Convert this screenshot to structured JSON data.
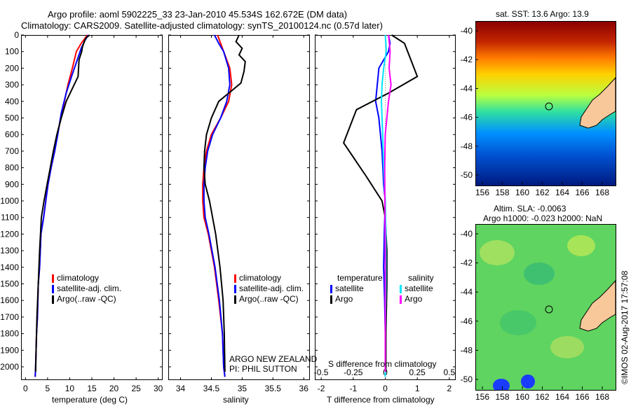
{
  "title": {
    "line1": "Argo profile: aoml 5902225_33 23-Jan-2010 45.534S 162.672E (DM data)",
    "line2": "Climatology: CARS2009. Satellite-adjusted climatology: synTS_20100124.nc (0.57d later)"
  },
  "colors": {
    "climatology": "#ff0000",
    "satellite": "#0000ff",
    "argo": "#000000",
    "sal_satellite": "#00e5ff",
    "sal_argo": "#ff00ff"
  },
  "legend_profiles": {
    "climatology": "climatology",
    "satellite": "satellite-adj. clim.",
    "argo": "Argo(..raw -QC)"
  },
  "legend_diff": {
    "temperature_head": "temperature",
    "salinity_head": "salinity",
    "satellite": "satellite",
    "argo": "Argo"
  },
  "annotations": {
    "institute": "ARGO NEW ZEALAND",
    "pi": "PI: PHIL SUTTON",
    "s_diff_label": "S difference from climatology",
    "stamp": "©IMOS 02-Aug-2017 17:57:08"
  },
  "maps": {
    "sst_title": "sat. SST: 13.6 Argo: 13.9",
    "sla_title1": "Altim. SLA: -0.0063",
    "sla_title2": "Argo h1000: -0.023 h2000: NaN",
    "lat_ticks": [
      "-40",
      "-42",
      "-44",
      "-46",
      "-48",
      "-50"
    ],
    "lon_ticks": [
      "156",
      "158",
      "160",
      "162",
      "164",
      "166",
      "168"
    ]
  },
  "chart_data": [
    {
      "type": "line",
      "xlabel": "temperature (deg C)",
      "ylabel": "",
      "xlim": [
        -1,
        31
      ],
      "ylim": [
        2080,
        0
      ],
      "xticks": [
        0,
        5,
        10,
        15,
        20,
        25,
        30
      ],
      "yticks": [
        0,
        100,
        200,
        300,
        400,
        500,
        600,
        700,
        800,
        900,
        1000,
        1100,
        1200,
        1300,
        1400,
        1500,
        1600,
        1700,
        1800,
        1900,
        2000
      ],
      "series": [
        {
          "name": "climatology",
          "x": [
            14,
            12.6,
            11.5,
            10.6,
            9.6,
            8.8,
            8,
            7.2,
            6.6,
            5.8,
            5.1,
            4.6,
            4.1,
            3.5,
            3.2,
            2.9,
            2.7,
            2.5,
            2.3,
            2.2
          ],
          "y": [
            0,
            50,
            100,
            200,
            300,
            400,
            500,
            600,
            700,
            800,
            900,
            1000,
            1100,
            1200,
            1400,
            1500,
            1700,
            1800,
            2000,
            2060
          ]
        },
        {
          "name": "satellite-adj. clim.",
          "x": [
            14.2,
            13.5,
            12.6,
            11.7,
            10.4,
            9.2,
            8.1,
            7.3,
            6.6,
            5.8,
            5.1,
            4.6,
            4.1,
            3.5,
            3.2,
            2.9,
            2.7,
            2.5,
            2.3,
            2.2
          ],
          "y": [
            0,
            30,
            80,
            150,
            250,
            350,
            470,
            600,
            700,
            800,
            900,
            1000,
            1100,
            1200,
            1400,
            1500,
            1700,
            1800,
            2000,
            2060
          ]
        },
        {
          "name": "Argo(..raw -QC)",
          "x": [
            14.5,
            13.6,
            13.3,
            12.9,
            12.7,
            12.1,
            11.9,
            9.2,
            8.1,
            7.1,
            6.3,
            5.6,
            4.9,
            4.2,
            3.6,
            3.2,
            2.9,
            2.6,
            2.4,
            2.3
          ],
          "y": [
            0,
            20,
            40,
            70,
            100,
            150,
            250,
            400,
            500,
            600,
            700,
            800,
            900,
            1000,
            1100,
            1300,
            1500,
            1700,
            1900,
            2030
          ]
        }
      ]
    },
    {
      "type": "line",
      "xlabel": "salinity",
      "ylabel": "",
      "xlim": [
        33.8,
        36.1
      ],
      "ylim": [
        2080,
        0
      ],
      "xticks": [
        34,
        34.5,
        35,
        35.5,
        36
      ],
      "series": [
        {
          "name": "climatology",
          "x": [
            34.6,
            34.65,
            34.7,
            34.8,
            34.83,
            34.78,
            34.65,
            34.5,
            34.42,
            34.38,
            34.36,
            34.36,
            34.38,
            34.45,
            34.55,
            34.62,
            34.68,
            34.7,
            34.72
          ],
          "y": [
            0,
            50,
            100,
            200,
            300,
            400,
            500,
            600,
            700,
            800,
            900,
            1000,
            1100,
            1200,
            1400,
            1600,
            1800,
            2000,
            2060
          ]
        },
        {
          "name": "satellite-adj. clim.",
          "x": [
            34.55,
            34.62,
            34.7,
            34.78,
            34.8,
            34.75,
            34.65,
            34.52,
            34.44,
            34.4,
            34.38,
            34.38,
            34.4,
            34.46,
            34.56,
            34.63,
            34.68,
            34.7,
            34.72
          ],
          "y": [
            0,
            50,
            100,
            200,
            300,
            400,
            500,
            600,
            700,
            800,
            900,
            1000,
            1100,
            1200,
            1400,
            1600,
            1800,
            2000,
            2060
          ]
        },
        {
          "name": "Argo(..raw -QC)",
          "x": [
            34.95,
            34.9,
            35,
            34.95,
            35.05,
            35.03,
            34.98,
            34.62,
            34.5,
            34.42,
            34.39,
            34.38,
            34.4,
            34.47,
            34.57,
            34.64,
            34.69,
            34.71,
            34.72
          ],
          "y": [
            0,
            40,
            80,
            120,
            160,
            220,
            290,
            400,
            500,
            600,
            700,
            800,
            900,
            1000,
            1200,
            1400,
            1600,
            1800,
            2030
          ]
        }
      ]
    },
    {
      "type": "line",
      "xlabel": "T difference from climatology",
      "ylabel": "",
      "xlim": [
        -2.2,
        2.2
      ],
      "ylim": [
        2080,
        0
      ],
      "xticks": [
        -2,
        -1,
        0,
        1,
        2
      ],
      "xticks_top_labels": [
        "-0.5",
        "-0.25",
        "0",
        "0.25",
        "0.5"
      ],
      "xticks_top_values": [
        -0.5,
        -0.25,
        0,
        0.25,
        0.5
      ],
      "series": [
        {
          "name": "temperature satellite",
          "x": [
            0.1,
            0.15,
            0.1,
            -0.2,
            -0.25,
            -0.3,
            -0.2,
            -0.1,
            -0.05,
            0,
            -0.03,
            -0.05,
            -0.02,
            0,
            0
          ],
          "y": [
            0,
            50,
            100,
            200,
            300,
            400,
            500,
            700,
            900,
            1000,
            1200,
            1400,
            1600,
            1800,
            2060
          ]
        },
        {
          "name": "temperature Argo",
          "x": [
            0.2,
            0.6,
            0.7,
            1.0,
            0.1,
            -0.9,
            -1.3,
            -0.6,
            -0.1,
            0,
            0.05,
            0.05,
            0.02,
            0.02
          ],
          "y": [
            0,
            50,
            100,
            250,
            350,
            450,
            650,
            850,
            1000,
            1100,
            1300,
            1500,
            1800,
            2030
          ]
        },
        {
          "name": "salinity satellite",
          "x": [
            0,
            0.02,
            0.03,
            -0.05,
            -0.1,
            -0.12,
            -0.08,
            -0.05,
            0,
            0.02,
            0.02,
            0,
            0
          ],
          "y": [
            0,
            50,
            100,
            200,
            300,
            400,
            600,
            800,
            1000,
            1200,
            1500,
            1800,
            2060
          ]
        },
        {
          "name": "salinity Argo",
          "x": [
            0.1,
            0.13,
            0.15,
            0.12,
            0.18,
            0.1,
            0,
            -0.02,
            -0.01,
            0,
            0,
            0
          ],
          "y": [
            0,
            50,
            100,
            200,
            300,
            400,
            600,
            800,
            1000,
            1300,
            1600,
            2030
          ]
        }
      ]
    }
  ]
}
